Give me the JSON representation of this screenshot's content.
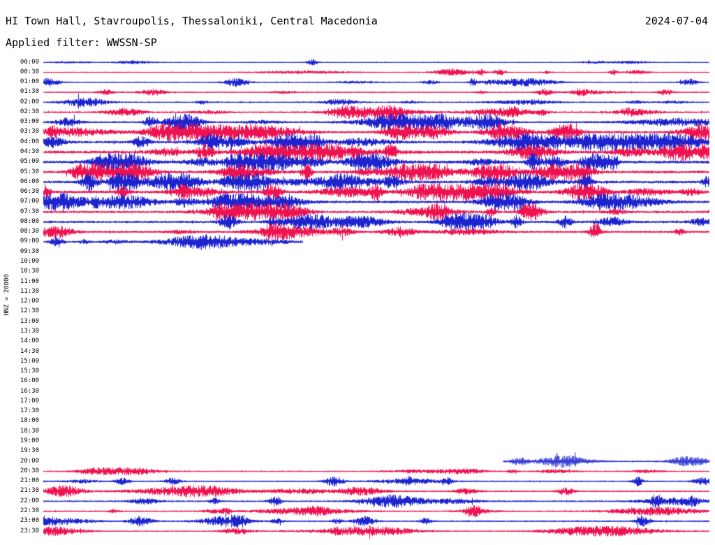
{
  "header": {
    "station_title": "HI Town Hall, Stavroupolis, Thessaloniki, Central Macedonia",
    "date": "2024-07-04",
    "filter": "Applied filter: WWSSN-SP"
  },
  "axis": {
    "y_label": "HNZ = 20000"
  },
  "chart_data": {
    "type": "line",
    "subtype": "helicorder-daily-seismogram",
    "title": "HI Town Hall, Stavroupolis, Thessaloniki, Central Macedonia",
    "date": "2024-07-04",
    "filter": "WWSSN-SP",
    "channel_scale_label": "HNZ = 20000",
    "row_interval_minutes": 30,
    "time_range": [
      "00:00",
      "23:30"
    ],
    "legend": "alternating trace colors per 30-minute row",
    "colors": {
      "blue": "#1d24cf",
      "red": "#ee1350"
    },
    "data_gap": {
      "from": "09:30",
      "to": "19:30",
      "note": "no trace drawn (no data)"
    },
    "partial_rows": [
      {
        "t": "09:00",
        "coverage": "start of row to ~39% of row width"
      },
      {
        "t": "20:00",
        "coverage": "~69% of row width to end of row"
      }
    ],
    "rows": [
      {
        "t": "00:00",
        "color": "blue",
        "amp": 0.18,
        "bursts": 6,
        "start": 0,
        "end": 1
      },
      {
        "t": "00:30",
        "color": "red",
        "amp": 0.2,
        "bursts": 7,
        "start": 0,
        "end": 1
      },
      {
        "t": "01:00",
        "color": "blue",
        "amp": 0.24,
        "bursts": 8,
        "start": 0,
        "end": 1
      },
      {
        "t": "01:30",
        "color": "red",
        "amp": 0.26,
        "bursts": 8,
        "start": 0,
        "end": 1
      },
      {
        "t": "02:00",
        "color": "blue",
        "amp": 0.28,
        "bursts": 9,
        "start": 0,
        "end": 1
      },
      {
        "t": "02:30",
        "color": "red",
        "amp": 0.36,
        "bursts": 10,
        "start": 0,
        "end": 1
      },
      {
        "t": "03:00",
        "color": "blue",
        "amp": 0.42,
        "bursts": 11,
        "start": 0,
        "end": 1
      },
      {
        "t": "03:30",
        "color": "red",
        "amp": 0.52,
        "bursts": 12,
        "start": 0,
        "end": 1
      },
      {
        "t": "04:00",
        "color": "blue",
        "amp": 0.6,
        "bursts": 13,
        "start": 0,
        "end": 1
      },
      {
        "t": "04:30",
        "color": "red",
        "amp": 0.66,
        "bursts": 14,
        "start": 0,
        "end": 1
      },
      {
        "t": "05:00",
        "color": "blue",
        "amp": 0.66,
        "bursts": 14,
        "start": 0,
        "end": 1
      },
      {
        "t": "05:30",
        "color": "red",
        "amp": 0.62,
        "bursts": 13,
        "start": 0,
        "end": 1
      },
      {
        "t": "06:00",
        "color": "blue",
        "amp": 0.62,
        "bursts": 13,
        "start": 0,
        "end": 1
      },
      {
        "t": "06:30",
        "color": "red",
        "amp": 0.62,
        "bursts": 13,
        "start": 0,
        "end": 1
      },
      {
        "t": "07:00",
        "color": "blue",
        "amp": 0.58,
        "bursts": 13,
        "start": 0,
        "end": 1
      },
      {
        "t": "07:30",
        "color": "red",
        "amp": 0.56,
        "bursts": 12,
        "start": 0,
        "end": 1
      },
      {
        "t": "08:00",
        "color": "blue",
        "amp": 0.52,
        "bursts": 12,
        "start": 0,
        "end": 1
      },
      {
        "t": "08:30",
        "color": "red",
        "amp": 0.46,
        "bursts": 10,
        "start": 0,
        "end": 1
      },
      {
        "t": "09:00",
        "color": "blue",
        "amp": 0.42,
        "bursts": 6,
        "start": 0,
        "end": 0.39
      },
      {
        "t": "09:30",
        "color": "red",
        "amp": 0,
        "bursts": 0,
        "start": 0,
        "end": 0
      },
      {
        "t": "10:00",
        "color": "blue",
        "amp": 0,
        "bursts": 0,
        "start": 0,
        "end": 0
      },
      {
        "t": "10:30",
        "color": "red",
        "amp": 0,
        "bursts": 0,
        "start": 0,
        "end": 0
      },
      {
        "t": "11:00",
        "color": "blue",
        "amp": 0,
        "bursts": 0,
        "start": 0,
        "end": 0
      },
      {
        "t": "11:30",
        "color": "red",
        "amp": 0,
        "bursts": 0,
        "start": 0,
        "end": 0
      },
      {
        "t": "12:00",
        "color": "blue",
        "amp": 0,
        "bursts": 0,
        "start": 0,
        "end": 0
      },
      {
        "t": "12:30",
        "color": "red",
        "amp": 0,
        "bursts": 0,
        "start": 0,
        "end": 0
      },
      {
        "t": "13:00",
        "color": "blue",
        "amp": 0,
        "bursts": 0,
        "start": 0,
        "end": 0
      },
      {
        "t": "13:30",
        "color": "red",
        "amp": 0,
        "bursts": 0,
        "start": 0,
        "end": 0
      },
      {
        "t": "14:00",
        "color": "blue",
        "amp": 0,
        "bursts": 0,
        "start": 0,
        "end": 0
      },
      {
        "t": "14:30",
        "color": "red",
        "amp": 0,
        "bursts": 0,
        "start": 0,
        "end": 0
      },
      {
        "t": "15:00",
        "color": "blue",
        "amp": 0,
        "bursts": 0,
        "start": 0,
        "end": 0
      },
      {
        "t": "15:30",
        "color": "red",
        "amp": 0,
        "bursts": 0,
        "start": 0,
        "end": 0
      },
      {
        "t": "16:00",
        "color": "blue",
        "amp": 0,
        "bursts": 0,
        "start": 0,
        "end": 0
      },
      {
        "t": "16:30",
        "color": "red",
        "amp": 0,
        "bursts": 0,
        "start": 0,
        "end": 0
      },
      {
        "t": "17:00",
        "color": "blue",
        "amp": 0,
        "bursts": 0,
        "start": 0,
        "end": 0
      },
      {
        "t": "17:30",
        "color": "red",
        "amp": 0,
        "bursts": 0,
        "start": 0,
        "end": 0
      },
      {
        "t": "18:00",
        "color": "blue",
        "amp": 0,
        "bursts": 0,
        "start": 0,
        "end": 0
      },
      {
        "t": "18:30",
        "color": "red",
        "amp": 0,
        "bursts": 0,
        "start": 0,
        "end": 0
      },
      {
        "t": "19:00",
        "color": "blue",
        "amp": 0,
        "bursts": 0,
        "start": 0,
        "end": 0
      },
      {
        "t": "19:30",
        "color": "red",
        "amp": 0,
        "bursts": 0,
        "start": 0,
        "end": 0
      },
      {
        "t": "20:00",
        "color": "blue",
        "amp": 0.3,
        "bursts": 4,
        "start": 0.69,
        "end": 1
      },
      {
        "t": "20:30",
        "color": "red",
        "amp": 0.26,
        "bursts": 8,
        "start": 0,
        "end": 1
      },
      {
        "t": "21:00",
        "color": "blue",
        "amp": 0.3,
        "bursts": 9,
        "start": 0,
        "end": 1
      },
      {
        "t": "21:30",
        "color": "red",
        "amp": 0.3,
        "bursts": 9,
        "start": 0,
        "end": 1
      },
      {
        "t": "22:00",
        "color": "blue",
        "amp": 0.36,
        "bursts": 10,
        "start": 0,
        "end": 1
      },
      {
        "t": "22:30",
        "color": "red",
        "amp": 0.3,
        "bursts": 9,
        "start": 0,
        "end": 1
      },
      {
        "t": "23:00",
        "color": "blue",
        "amp": 0.32,
        "bursts": 9,
        "start": 0,
        "end": 1
      },
      {
        "t": "23:30",
        "color": "red",
        "amp": 0.26,
        "bursts": 8,
        "start": 0,
        "end": 1
      }
    ]
  }
}
